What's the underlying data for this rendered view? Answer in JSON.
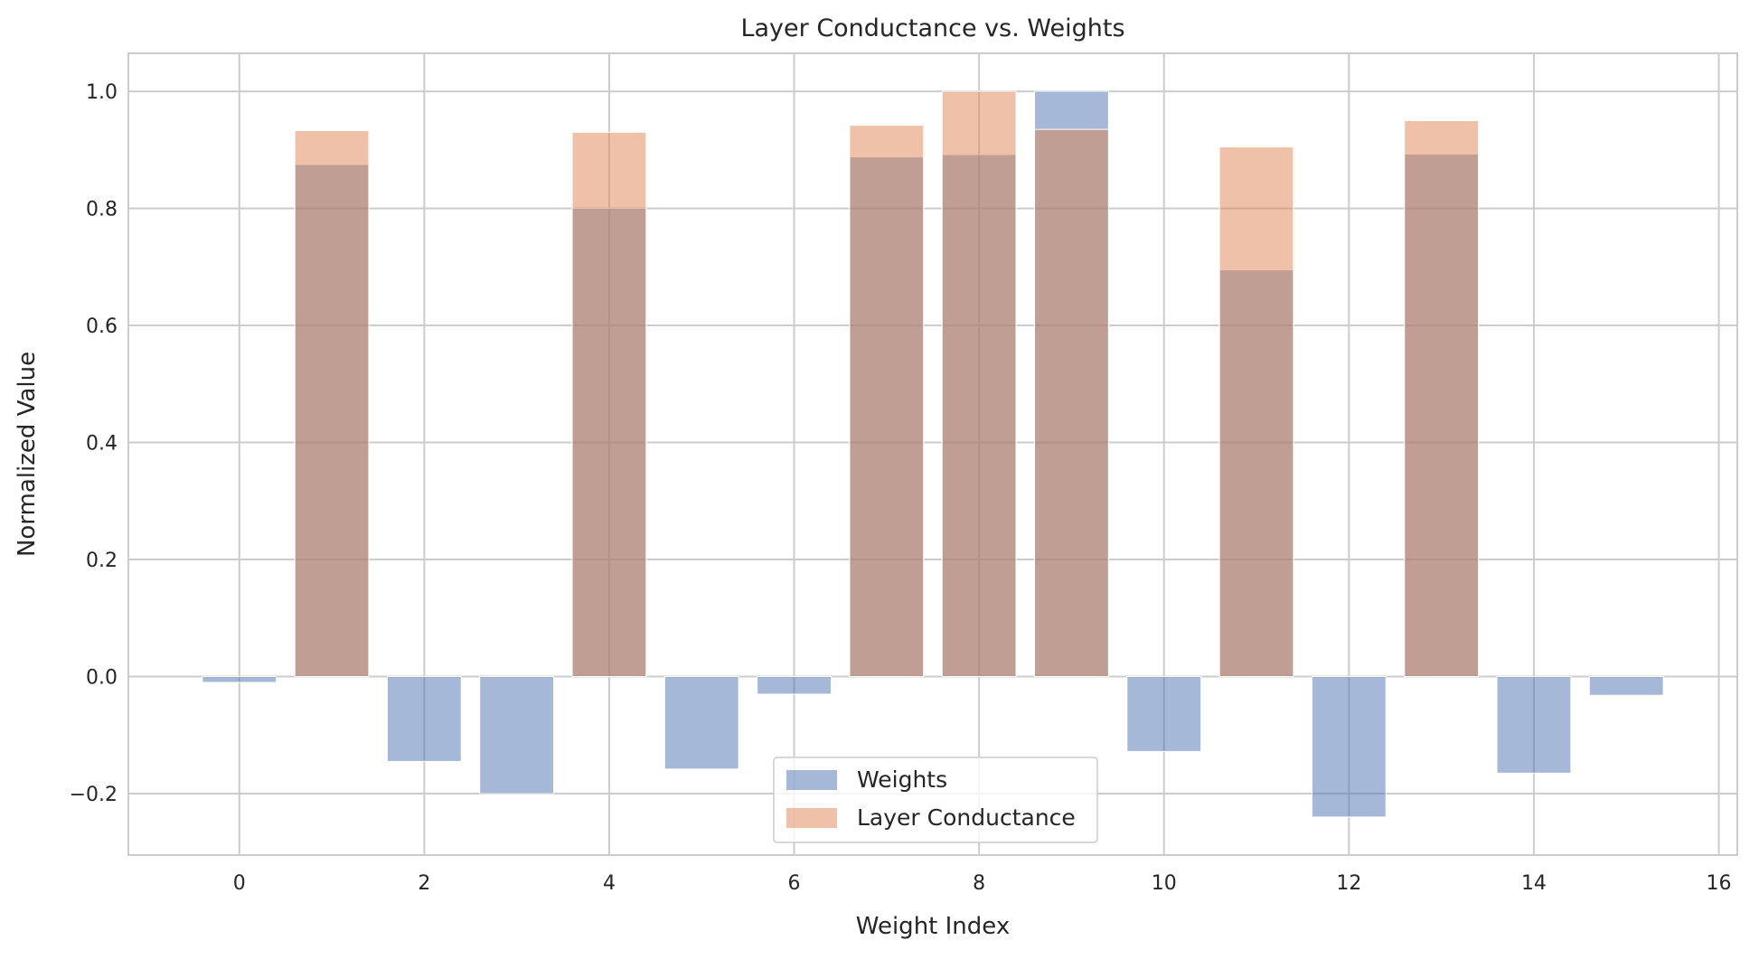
{
  "chart_data": {
    "type": "bar",
    "title": "Layer Conductance vs. Weights",
    "xlabel": "Weight Index",
    "ylabel": "Normalized Value",
    "xlim": [
      -1.2,
      16.2
    ],
    "ylim": [
      -0.305,
      1.065
    ],
    "x_ticks": [
      0,
      2,
      4,
      6,
      8,
      10,
      12,
      14,
      16
    ],
    "y_ticks": [
      -0.2,
      0.0,
      0.2,
      0.4,
      0.6,
      0.8,
      1.0
    ],
    "y_tick_labels": [
      "−0.2",
      "0.0",
      "0.2",
      "0.4",
      "0.6",
      "0.8",
      "1.0"
    ],
    "grid": true,
    "legend_position": "bottom-center",
    "x": [
      0,
      1,
      2,
      3,
      4,
      5,
      6,
      7,
      8,
      9,
      10,
      11,
      12,
      13,
      14,
      15
    ],
    "series": [
      {
        "name": "Weights",
        "color": "#4c72b0",
        "values": [
          -0.01,
          0.875,
          -0.145,
          -0.2,
          0.8,
          -0.158,
          -0.03,
          0.888,
          0.892,
          1.0,
          -0.128,
          0.695,
          -0.24,
          0.893,
          -0.165,
          -0.032
        ]
      },
      {
        "name": "Layer Conductance",
        "color": "#dd8452",
        "values": [
          0.0,
          0.933,
          0.0,
          0.0,
          0.93,
          0.0,
          0.0,
          0.942,
          1.0,
          0.935,
          0.0,
          0.905,
          0.0,
          0.95,
          0.0,
          0.0
        ]
      }
    ]
  }
}
